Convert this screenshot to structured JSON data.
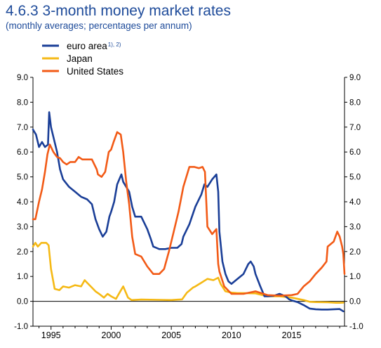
{
  "header": {
    "title": "4.6.3 3-month money market rates",
    "subtitle": "(monthly averages; percentages per annum)"
  },
  "colors": {
    "euro_area": "#1a3e97",
    "japan": "#f5b915",
    "united_states": "#f25a16",
    "text_blue": "#1e4b9a"
  },
  "chart_data": {
    "type": "line",
    "title": "4.6.3 3-month money market rates",
    "subtitle": "(monthly averages; percentages per annum)",
    "xlim": [
      1993.5,
      2019.4
    ],
    "ylim": [
      -1.0,
      9.0
    ],
    "y_ticks": [
      -1.0,
      0.0,
      1.0,
      2.0,
      3.0,
      4.0,
      5.0,
      6.0,
      7.0,
      8.0,
      9.0
    ],
    "y_tick_labels": [
      "-1.0",
      "0.0",
      "1.0",
      "2.0",
      "3.0",
      "4.0",
      "5.0",
      "6.0",
      "7.0",
      "8.0",
      "9.0"
    ],
    "x_ticks": [
      1995,
      2000,
      2005,
      2010,
      2015
    ],
    "x_tick_labels": [
      "1995",
      "2000",
      "2005",
      "2010",
      "2015"
    ],
    "grid": false,
    "zero_line": true,
    "dual_y_axis": true,
    "legend": {
      "placement": "top-left",
      "entries": [
        {
          "key": "euro_area",
          "label": "euro area",
          "note": "1), 2)"
        },
        {
          "key": "japan",
          "label": "Japan",
          "note": ""
        },
        {
          "key": "united_states",
          "label": "United States",
          "note": ""
        }
      ]
    },
    "series": [
      {
        "key": "euro_area",
        "name": "euro area",
        "points": [
          [
            1993.5,
            6.9
          ],
          [
            1993.75,
            6.7
          ],
          [
            1994.0,
            6.2
          ],
          [
            1994.25,
            6.4
          ],
          [
            1994.5,
            6.2
          ],
          [
            1994.75,
            6.3
          ],
          [
            1994.85,
            7.6
          ],
          [
            1995.0,
            7.0
          ],
          [
            1995.25,
            6.5
          ],
          [
            1995.5,
            6.0
          ],
          [
            1995.75,
            5.3
          ],
          [
            1996.0,
            4.9
          ],
          [
            1996.5,
            4.6
          ],
          [
            1997.0,
            4.4
          ],
          [
            1997.5,
            4.2
          ],
          [
            1998.0,
            4.1
          ],
          [
            1998.4,
            3.9
          ],
          [
            1998.7,
            3.3
          ],
          [
            1999.0,
            2.9
          ],
          [
            1999.3,
            2.6
          ],
          [
            1999.6,
            2.8
          ],
          [
            1999.85,
            3.4
          ],
          [
            2000.0,
            3.6
          ],
          [
            2000.25,
            4.0
          ],
          [
            2000.5,
            4.7
          ],
          [
            2000.85,
            5.1
          ],
          [
            2001.0,
            4.8
          ],
          [
            2001.25,
            4.6
          ],
          [
            2001.5,
            4.4
          ],
          [
            2001.75,
            3.8
          ],
          [
            2002.0,
            3.4
          ],
          [
            2002.5,
            3.4
          ],
          [
            2003.0,
            2.9
          ],
          [
            2003.3,
            2.5
          ],
          [
            2003.5,
            2.2
          ],
          [
            2004.0,
            2.1
          ],
          [
            2004.5,
            2.1
          ],
          [
            2005.0,
            2.15
          ],
          [
            2005.5,
            2.15
          ],
          [
            2005.85,
            2.3
          ],
          [
            2006.0,
            2.6
          ],
          [
            2006.5,
            3.1
          ],
          [
            2007.0,
            3.8
          ],
          [
            2007.5,
            4.3
          ],
          [
            2007.75,
            4.7
          ],
          [
            2008.0,
            4.6
          ],
          [
            2008.4,
            4.9
          ],
          [
            2008.75,
            5.1
          ],
          [
            2008.9,
            4.4
          ],
          [
            2009.0,
            2.8
          ],
          [
            2009.25,
            1.6
          ],
          [
            2009.5,
            1.1
          ],
          [
            2009.75,
            0.8
          ],
          [
            2010.0,
            0.7
          ],
          [
            2010.5,
            0.9
          ],
          [
            2011.0,
            1.1
          ],
          [
            2011.4,
            1.5
          ],
          [
            2011.6,
            1.6
          ],
          [
            2011.85,
            1.4
          ],
          [
            2012.0,
            1.1
          ],
          [
            2012.4,
            0.6
          ],
          [
            2012.75,
            0.2
          ],
          [
            2013.0,
            0.2
          ],
          [
            2013.5,
            0.22
          ],
          [
            2014.0,
            0.3
          ],
          [
            2014.5,
            0.2
          ],
          [
            2014.8,
            0.08
          ],
          [
            2015.0,
            0.04
          ],
          [
            2015.5,
            -0.03
          ],
          [
            2016.0,
            -0.15
          ],
          [
            2016.5,
            -0.29
          ],
          [
            2017.0,
            -0.32
          ],
          [
            2017.5,
            -0.33
          ],
          [
            2018.0,
            -0.33
          ],
          [
            2018.5,
            -0.32
          ],
          [
            2019.0,
            -0.31
          ],
          [
            2019.3,
            -0.4
          ]
        ]
      },
      {
        "key": "japan",
        "name": "Japan",
        "points": [
          [
            1993.5,
            2.2
          ],
          [
            1993.7,
            2.35
          ],
          [
            1993.9,
            2.2
          ],
          [
            1994.2,
            2.35
          ],
          [
            1994.6,
            2.35
          ],
          [
            1994.8,
            2.25
          ],
          [
            1995.0,
            1.3
          ],
          [
            1995.3,
            0.5
          ],
          [
            1995.7,
            0.45
          ],
          [
            1996.0,
            0.6
          ],
          [
            1996.5,
            0.55
          ],
          [
            1997.0,
            0.65
          ],
          [
            1997.5,
            0.6
          ],
          [
            1997.8,
            0.85
          ],
          [
            1998.0,
            0.75
          ],
          [
            1998.3,
            0.6
          ],
          [
            1998.7,
            0.4
          ],
          [
            1999.0,
            0.3
          ],
          [
            1999.4,
            0.15
          ],
          [
            1999.7,
            0.3
          ],
          [
            2000.0,
            0.2
          ],
          [
            2000.4,
            0.1
          ],
          [
            2000.7,
            0.35
          ],
          [
            2001.0,
            0.6
          ],
          [
            2001.4,
            0.15
          ],
          [
            2001.7,
            0.05
          ],
          [
            2002.5,
            0.07
          ],
          [
            2004.0,
            0.06
          ],
          [
            2005.0,
            0.05
          ],
          [
            2005.9,
            0.08
          ],
          [
            2006.3,
            0.35
          ],
          [
            2006.8,
            0.55
          ],
          [
            2007.0,
            0.6
          ],
          [
            2007.5,
            0.75
          ],
          [
            2008.0,
            0.9
          ],
          [
            2008.5,
            0.85
          ],
          [
            2008.9,
            0.95
          ],
          [
            2009.1,
            0.7
          ],
          [
            2009.5,
            0.4
          ],
          [
            2010.0,
            0.35
          ],
          [
            2010.5,
            0.33
          ],
          [
            2011.0,
            0.33
          ],
          [
            2012.0,
            0.32
          ],
          [
            2013.0,
            0.2
          ],
          [
            2014.0,
            0.2
          ],
          [
            2015.0,
            0.15
          ],
          [
            2016.0,
            0.05
          ],
          [
            2016.5,
            -0.02
          ],
          [
            2017.0,
            -0.03
          ],
          [
            2018.0,
            -0.04
          ],
          [
            2018.7,
            -0.06
          ],
          [
            2019.0,
            -0.06
          ],
          [
            2019.3,
            -0.05
          ]
        ]
      },
      {
        "key": "united_states",
        "name": "United States",
        "points": [
          [
            1993.5,
            3.3
          ],
          [
            1993.7,
            3.3
          ],
          [
            1994.0,
            4.0
          ],
          [
            1994.25,
            4.5
          ],
          [
            1994.5,
            5.2
          ],
          [
            1994.7,
            5.9
          ],
          [
            1994.9,
            6.3
          ],
          [
            1995.2,
            6.0
          ],
          [
            1995.5,
            5.8
          ],
          [
            1995.75,
            5.75
          ],
          [
            1996.0,
            5.6
          ],
          [
            1996.3,
            5.5
          ],
          [
            1996.6,
            5.6
          ],
          [
            1997.0,
            5.6
          ],
          [
            1997.3,
            5.8
          ],
          [
            1997.6,
            5.7
          ],
          [
            1998.0,
            5.7
          ],
          [
            1998.4,
            5.7
          ],
          [
            1998.8,
            5.3
          ],
          [
            1998.9,
            5.1
          ],
          [
            1999.2,
            5.0
          ],
          [
            1999.5,
            5.2
          ],
          [
            1999.8,
            6.0
          ],
          [
            2000.0,
            6.1
          ],
          [
            2000.2,
            6.4
          ],
          [
            2000.5,
            6.8
          ],
          [
            2000.8,
            6.7
          ],
          [
            2001.0,
            6.0
          ],
          [
            2001.25,
            4.8
          ],
          [
            2001.5,
            3.9
          ],
          [
            2001.75,
            2.6
          ],
          [
            2002.0,
            1.9
          ],
          [
            2002.5,
            1.8
          ],
          [
            2003.0,
            1.4
          ],
          [
            2003.5,
            1.1
          ],
          [
            2004.0,
            1.1
          ],
          [
            2004.4,
            1.3
          ],
          [
            2004.8,
            2.0
          ],
          [
            2005.2,
            2.8
          ],
          [
            2005.6,
            3.6
          ],
          [
            2006.0,
            4.6
          ],
          [
            2006.5,
            5.4
          ],
          [
            2006.9,
            5.4
          ],
          [
            2007.3,
            5.35
          ],
          [
            2007.6,
            5.4
          ],
          [
            2007.8,
            5.2
          ],
          [
            2008.0,
            3.0
          ],
          [
            2008.4,
            2.7
          ],
          [
            2008.75,
            2.9
          ],
          [
            2008.9,
            1.5
          ],
          [
            2009.0,
            1.2
          ],
          [
            2009.4,
            0.6
          ],
          [
            2010.0,
            0.3
          ],
          [
            2011.0,
            0.3
          ],
          [
            2012.0,
            0.4
          ],
          [
            2013.0,
            0.25
          ],
          [
            2014.0,
            0.23
          ],
          [
            2015.0,
            0.25
          ],
          [
            2015.5,
            0.3
          ],
          [
            2016.0,
            0.6
          ],
          [
            2016.5,
            0.8
          ],
          [
            2017.0,
            1.1
          ],
          [
            2017.5,
            1.35
          ],
          [
            2017.9,
            1.6
          ],
          [
            2018.0,
            2.2
          ],
          [
            2018.5,
            2.4
          ],
          [
            2018.8,
            2.8
          ],
          [
            2019.0,
            2.6
          ],
          [
            2019.2,
            2.2
          ],
          [
            2019.3,
            1.9
          ],
          [
            2019.4,
            1.1
          ]
        ]
      }
    ]
  }
}
